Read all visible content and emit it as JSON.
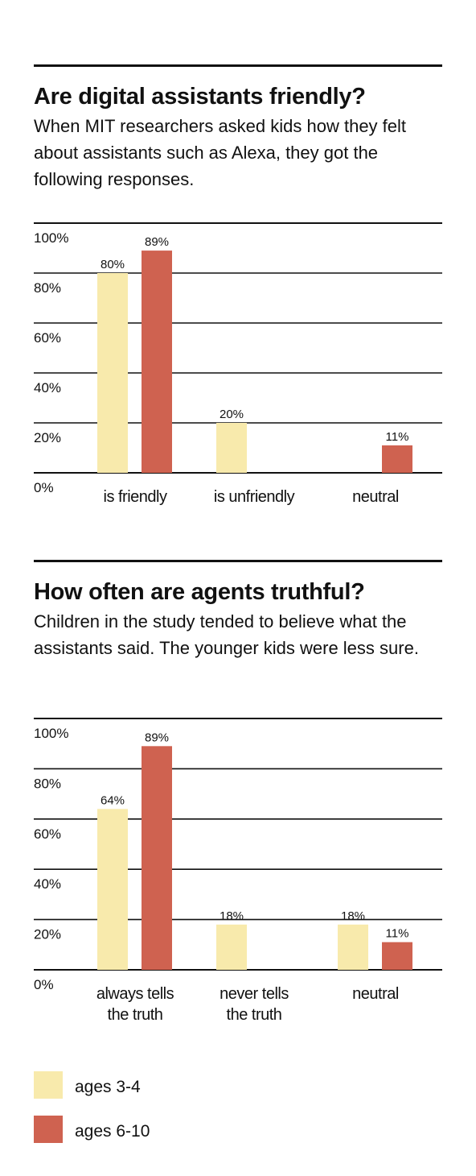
{
  "colors": {
    "series_a": "#f8eaac",
    "series_b": "#cf6250",
    "rule": "#111111"
  },
  "sections": [
    {
      "title": "Are digital assistants friendly?",
      "subtitle": "When MIT researchers asked kids how they felt about assistants such as Alexa, they got the following responses."
    },
    {
      "title": "How often are agents truthful?",
      "subtitle": "Children in the study tended to believe what the assistants said. The younger kids were less sure."
    }
  ],
  "chart_data": [
    {
      "type": "bar",
      "categories": [
        [
          "is friendly"
        ],
        [
          "is unfriendly"
        ],
        [
          "neutral"
        ]
      ],
      "series": [
        {
          "name": "ages 3-4",
          "values": [
            80,
            20,
            null
          ],
          "labels": [
            "80%",
            "20%",
            ""
          ]
        },
        {
          "name": "ages 6-10",
          "values": [
            89,
            null,
            11
          ],
          "labels": [
            "89%",
            "",
            "11%"
          ]
        }
      ],
      "yticks": [
        "0%",
        "20%",
        "40%",
        "60%",
        "80%",
        "100%"
      ],
      "ylim": [
        0,
        100
      ],
      "grid": true
    },
    {
      "type": "bar",
      "categories": [
        [
          "always tells",
          "the truth"
        ],
        [
          "never tells",
          "the truth"
        ],
        [
          "neutral"
        ]
      ],
      "series": [
        {
          "name": "ages 3-4",
          "values": [
            64,
            18,
            18
          ],
          "labels": [
            "64%",
            "18%",
            "18%"
          ]
        },
        {
          "name": "ages 6-10",
          "values": [
            89,
            null,
            11
          ],
          "labels": [
            "89%",
            "",
            "11%"
          ]
        }
      ],
      "yticks": [
        "0%",
        "20%",
        "40%",
        "60%",
        "80%",
        "100%"
      ],
      "ylim": [
        0,
        100
      ],
      "grid": true
    }
  ],
  "legend": {
    "placement": "bottom-left",
    "items": [
      {
        "label": "ages 3-4"
      },
      {
        "label": "ages 6-10"
      }
    ]
  }
}
